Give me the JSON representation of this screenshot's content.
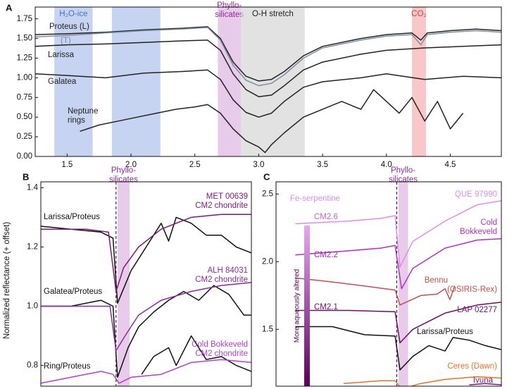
{
  "ylabel": "Normalized reflectance (+ offset)",
  "chart_data": [
    {
      "type": "line",
      "panel": "A",
      "xlim": [
        1.25,
        4.9
      ],
      "ylim": [
        0,
        1.9
      ],
      "xticks": [
        1.5,
        {
          "value": 2,
          "label": "2.0"
        },
        2.5,
        {
          "value": 3,
          "label": "3.0"
        },
        3.5,
        {
          "value": 4,
          "label": "4.0"
        },
        4.5
      ],
      "yticks": [
        {
          "value": 0,
          "label": "0.00"
        },
        {
          "value": 0.25,
          "label": "0.25"
        },
        {
          "value": 0.5,
          "label": "0.50"
        },
        {
          "value": 0.75,
          "label": "0.75"
        },
        {
          "value": 1,
          "label": "1.00"
        },
        {
          "value": 1.25,
          "label": "1.25"
        },
        {
          "value": 1.5,
          "label": "1.50"
        },
        {
          "value": 1.75,
          "label": "1.75"
        }
      ],
      "regions": [
        {
          "label": "H₂O-ice",
          "xmin": 1.4,
          "xmax": 1.7,
          "color": "#a9bdea",
          "label_color": "#4a6fc7"
        },
        {
          "xmin": 1.85,
          "xmax": 2.23,
          "color": "#a9bdea"
        },
        {
          "label": "Phyllo-\nsilicates",
          "xmin": 2.68,
          "xmax": 2.86,
          "color": "#dcaede",
          "label_color": "#8b2a9b"
        },
        {
          "label": "O-H stretch",
          "xmin": 2.86,
          "xmax": 3.36,
          "color": "#d2d2d2",
          "label_color": "#222222"
        },
        {
          "label": "CO₂",
          "xmin": 4.2,
          "xmax": 4.31,
          "color": "#f6a9a9",
          "label_color": "#d84040"
        }
      ],
      "series": [
        {
          "name": "Proteus (L)",
          "color": "#222222",
          "x": [
            1.25,
            1.5,
            1.8,
            2.1,
            2.4,
            2.6,
            2.7,
            2.8,
            2.9,
            3.0,
            3.1,
            3.2,
            3.35,
            3.5,
            3.8,
            4.0,
            4.2,
            4.27,
            4.32,
            4.5,
            4.7,
            4.9
          ],
          "values": [
            1.55,
            1.56,
            1.58,
            1.61,
            1.63,
            1.65,
            1.5,
            1.2,
            1.02,
            0.96,
            0.98,
            1.08,
            1.28,
            1.4,
            1.5,
            1.55,
            1.57,
            1.48,
            1.57,
            1.6,
            1.62,
            1.6
          ]
        },
        {
          "name": "(T)",
          "color": "#7d8fa0",
          "x": [
            1.25,
            1.5,
            1.8,
            2.1,
            2.4,
            2.6,
            2.7,
            2.8,
            2.9,
            3.0,
            3.1,
            3.2,
            3.35,
            3.5,
            3.8,
            4.0,
            4.2,
            4.27,
            4.32,
            4.5,
            4.7,
            4.9
          ],
          "values": [
            1.52,
            1.54,
            1.57,
            1.6,
            1.62,
            1.64,
            1.48,
            1.16,
            0.97,
            0.9,
            0.93,
            1.04,
            1.25,
            1.38,
            1.48,
            1.53,
            1.55,
            1.42,
            1.55,
            1.58,
            1.6,
            1.58
          ]
        },
        {
          "name": "Larissa",
          "color": "#222222",
          "x": [
            1.25,
            1.5,
            1.8,
            2.1,
            2.4,
            2.6,
            2.7,
            2.8,
            2.9,
            3.0,
            3.1,
            3.2,
            3.35,
            3.5,
            3.8,
            4.0,
            4.3,
            4.6,
            4.9
          ],
          "values": [
            1.4,
            1.42,
            1.43,
            1.45,
            1.47,
            1.48,
            1.35,
            1.05,
            0.85,
            0.76,
            0.78,
            0.9,
            1.1,
            1.2,
            1.3,
            1.35,
            1.38,
            1.4,
            1.42
          ]
        },
        {
          "name": "Galatea",
          "color": "#222222",
          "x": [
            1.25,
            1.5,
            1.8,
            2.1,
            2.4,
            2.6,
            2.7,
            2.8,
            2.9,
            3.0,
            3.1,
            3.2,
            3.35,
            3.5,
            3.8,
            4.0,
            4.3,
            4.6,
            4.9
          ],
          "values": [
            1.05,
            1.03,
            1.0,
            1.06,
            1.08,
            1.1,
            0.98,
            0.72,
            0.56,
            0.5,
            0.55,
            0.7,
            0.88,
            0.95,
            1.0,
            1.05,
            0.98,
            1.02,
            1.0
          ]
        },
        {
          "name": "Neptune\nrings",
          "color": "#222222",
          "x": [
            1.6,
            1.75,
            1.9,
            2.05,
            2.2,
            2.35,
            2.5,
            2.6,
            2.7,
            2.8,
            2.9,
            3.0,
            3.05,
            3.1,
            3.2,
            3.35,
            3.5,
            3.65,
            3.8,
            3.9,
            4.0,
            4.1,
            4.2,
            4.3,
            4.4,
            4.5,
            4.6
          ],
          "values": [
            0.32,
            0.4,
            0.45,
            0.5,
            0.55,
            0.6,
            0.63,
            0.66,
            0.55,
            0.35,
            0.2,
            0.12,
            0.05,
            0.15,
            0.3,
            0.5,
            0.6,
            0.7,
            0.6,
            0.85,
            0.7,
            0.55,
            0.75,
            0.45,
            0.7,
            0.35,
            0.55
          ]
        }
      ]
    },
    {
      "type": "line",
      "panel": "B",
      "xlim": [
        2.2,
        3.6
      ],
      "ylim": [
        0.73,
        1.42
      ],
      "yticks": [
        0.8,
        {
          "value": 1,
          "label": "1.0"
        },
        1.2,
        1.4
      ],
      "vline": 2.7,
      "regions": [
        {
          "label": "Phyllo-\nsilicates",
          "xmin": 2.71,
          "xmax": 2.79,
          "color": "#dcaede",
          "label_color": "#8b2a9b"
        }
      ],
      "series": [
        {
          "name": "Larissa/Proteus",
          "color": "#111111",
          "x": [
            2.2,
            2.4,
            2.6,
            2.68,
            2.71,
            2.8,
            2.9,
            3.0,
            3.05,
            3.1,
            3.2,
            3.3,
            3.4,
            3.5,
            3.6
          ],
          "values": [
            1.27,
            1.26,
            1.25,
            1.23,
            1.01,
            1.12,
            1.2,
            1.28,
            1.22,
            1.3,
            1.28,
            1.24,
            1.24,
            1.2,
            1.18
          ]
        },
        {
          "name": "MET 00639\nCM2 chondrite",
          "color": "#7a1a7a",
          "x": [
            2.2,
            2.5,
            2.65,
            2.7,
            2.75,
            2.85,
            3.0,
            3.2,
            3.4,
            3.6
          ],
          "values": [
            1.26,
            1.26,
            1.25,
            1.05,
            1.13,
            1.2,
            1.26,
            1.3,
            1.31,
            1.31
          ]
        },
        {
          "name": "Galatea/Proteus",
          "color": "#111111",
          "x": [
            2.2,
            2.4,
            2.6,
            2.68,
            2.71,
            2.78,
            2.85,
            2.95,
            3.05,
            3.15,
            3.25,
            3.35,
            3.45,
            3.55,
            3.6
          ],
          "values": [
            1.0,
            1.0,
            1.02,
            1.0,
            0.76,
            0.86,
            0.93,
            0.98,
            1.02,
            1.05,
            1.02,
            1.07,
            1.04,
            0.97,
            0.97
          ]
        },
        {
          "name": "ALH 84031\nCM2 chondrite",
          "color": "#8b2a9b",
          "x": [
            2.2,
            2.5,
            2.66,
            2.7,
            2.76,
            2.85,
            3.0,
            3.2,
            3.4,
            3.6
          ],
          "values": [
            1.0,
            1.0,
            1.0,
            0.85,
            0.9,
            0.97,
            1.02,
            1.05,
            1.07,
            1.08
          ]
        },
        {
          "name": "Ring/Proteus",
          "color": "#111111",
          "x": [
            2.87,
            2.95,
            3.05,
            3.1,
            3.2,
            3.3,
            3.4,
            3.5,
            3.6
          ],
          "values": [
            0.77,
            0.83,
            0.86,
            0.8,
            0.9,
            0.82,
            0.83,
            0.8,
            0.78
          ]
        },
        {
          "name": "Cold Bokkeveld\nCM2 chondrite",
          "color": "#b040c8",
          "x": [
            2.2,
            2.4,
            2.6,
            2.68,
            2.72,
            2.8,
            3.0,
            3.2,
            3.4,
            3.6
          ],
          "values": [
            0.74,
            0.76,
            0.78,
            0.77,
            0.74,
            0.76,
            0.77,
            0.81,
            0.82,
            0.81
          ]
        }
      ]
    },
    {
      "type": "line",
      "panel": "C",
      "xlim": [
        1.95,
        3.35
      ],
      "ylim": [
        1.08,
        2.59
      ],
      "yticks": [
        1.5,
        {
          "value": 2,
          "label": "2.0"
        },
        2.5
      ],
      "vline": 2.7,
      "regions": [
        {
          "label": "Phyllo-\nsilicates",
          "xmin": 2.71,
          "xmax": 2.77,
          "color": "#dcaede",
          "label_color": "#8b2a9b"
        }
      ],
      "annotations": [
        {
          "text": "Fe-serpentine",
          "color": "#d98ee0"
        },
        {
          "text": "CM2.6",
          "color": "#c262cf"
        },
        {
          "text": "CM2.2",
          "color": "#a226b4"
        },
        {
          "text": "CM2.1",
          "color": "#6a0f6a"
        }
      ],
      "colorbar": {
        "label": "More aqueously altered",
        "colors": [
          "#e6a8ee",
          "#5a005a"
        ]
      },
      "series": [
        {
          "name": "QUE 97990",
          "color": "#e08ce8",
          "x": [
            2.07,
            2.4,
            2.6,
            2.69,
            2.72,
            2.8,
            3.0,
            3.1,
            3.2,
            3.35
          ],
          "values": [
            2.28,
            2.3,
            2.32,
            2.34,
            1.96,
            2.15,
            2.3,
            2.36,
            2.42,
            2.45
          ]
        },
        {
          "name": "Cold\nBokkeveld",
          "color": "#b030c0",
          "x": [
            2.07,
            2.4,
            2.6,
            2.69,
            2.73,
            2.8,
            3.0,
            3.2,
            3.35
          ],
          "values": [
            2.05,
            2.08,
            2.1,
            2.12,
            1.8,
            1.95,
            2.1,
            2.16,
            2.17
          ]
        },
        {
          "name": "Bennu",
          "source": "(OSIRIS-Rex)",
          "color": "#c0504d",
          "x": [
            2.07,
            2.3,
            2.5,
            2.69,
            2.72,
            2.85,
            2.95,
            3.0,
            3.03,
            3.06
          ],
          "values": [
            1.88,
            1.85,
            1.82,
            1.79,
            1.68,
            1.75,
            1.76,
            1.8,
            1.72,
            1.82
          ]
        },
        {
          "name": "LAP 02277",
          "color": "#6a0f6a",
          "x": [
            2.07,
            2.4,
            2.69,
            2.72,
            2.8,
            3.0,
            3.2,
            3.35
          ],
          "values": [
            1.64,
            1.64,
            1.63,
            1.4,
            1.5,
            1.62,
            1.68,
            1.7
          ]
        },
        {
          "name": "Larissa/Proteus",
          "color": "#111111",
          "x": [
            2.07,
            2.3,
            2.5,
            2.69,
            2.72,
            2.8,
            2.9,
            3.0,
            3.05,
            3.15,
            3.25,
            3.35
          ],
          "values": [
            1.52,
            1.52,
            1.46,
            1.45,
            1.2,
            1.3,
            1.38,
            1.34,
            1.44,
            1.42,
            1.38,
            1.35
          ]
        },
        {
          "name": "Ceres",
          "source": "(Dawn)",
          "color": "#e8702a",
          "x": [
            2.37,
            2.6,
            2.69,
            2.73,
            2.85,
            3.0,
            3.2,
            3.35
          ],
          "values": [
            1.1,
            1.12,
            1.12,
            1.06,
            1.1,
            1.13,
            1.15,
            1.14
          ]
        },
        {
          "name": "Ivuna",
          "color": "#7a1a7a",
          "x": [
            3.15,
            3.25,
            3.35
          ],
          "values": [
            1.09,
            1.1,
            1.09
          ]
        }
      ]
    }
  ]
}
